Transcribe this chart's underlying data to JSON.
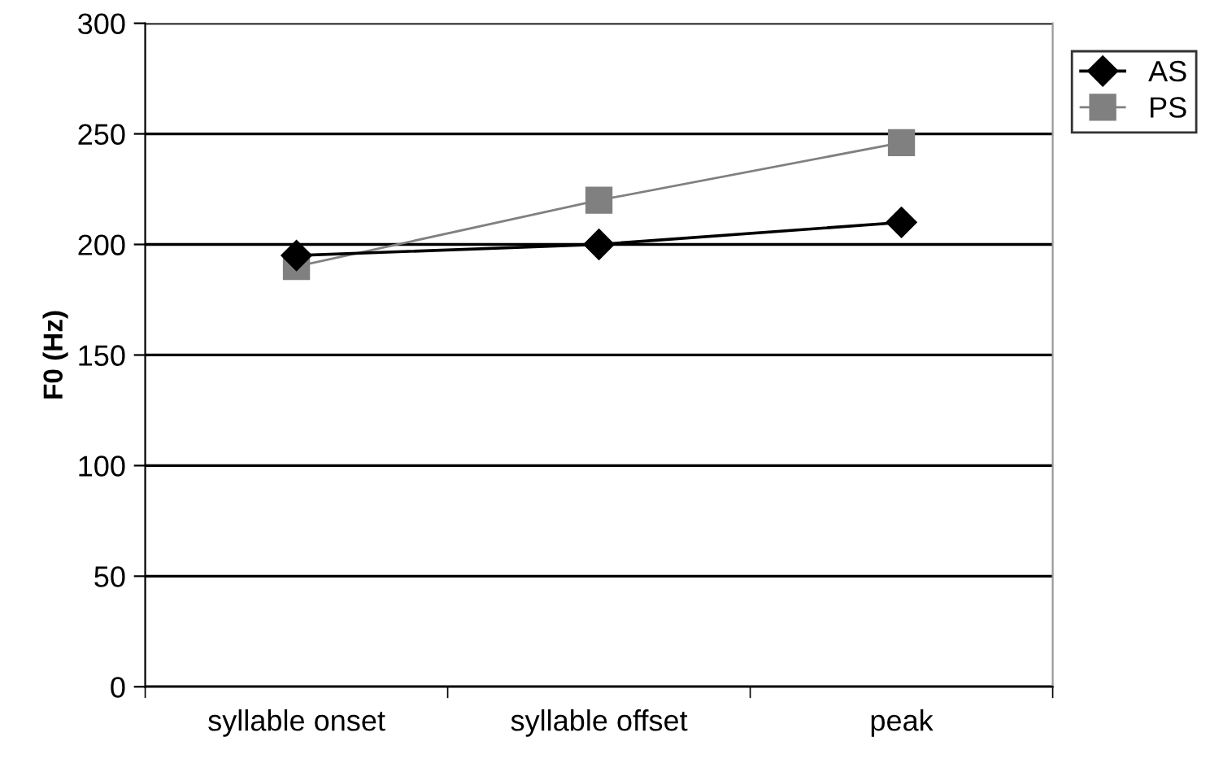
{
  "chart_data": {
    "type": "line",
    "ylabel": "F0 (Hz)",
    "categories": [
      "syllable onset",
      "syllable offset",
      "peak"
    ],
    "series": [
      {
        "name": "AS",
        "color": "#000000",
        "values": [
          195,
          200,
          210
        ],
        "marker": "diamond"
      },
      {
        "name": "PS",
        "color": "#808080",
        "values": [
          190,
          220,
          246
        ],
        "marker": "square"
      }
    ],
    "ylim": [
      0,
      300
    ],
    "yticks": [
      0,
      50,
      100,
      150,
      200,
      250,
      300
    ],
    "grid": "y",
    "legend": "top right"
  }
}
